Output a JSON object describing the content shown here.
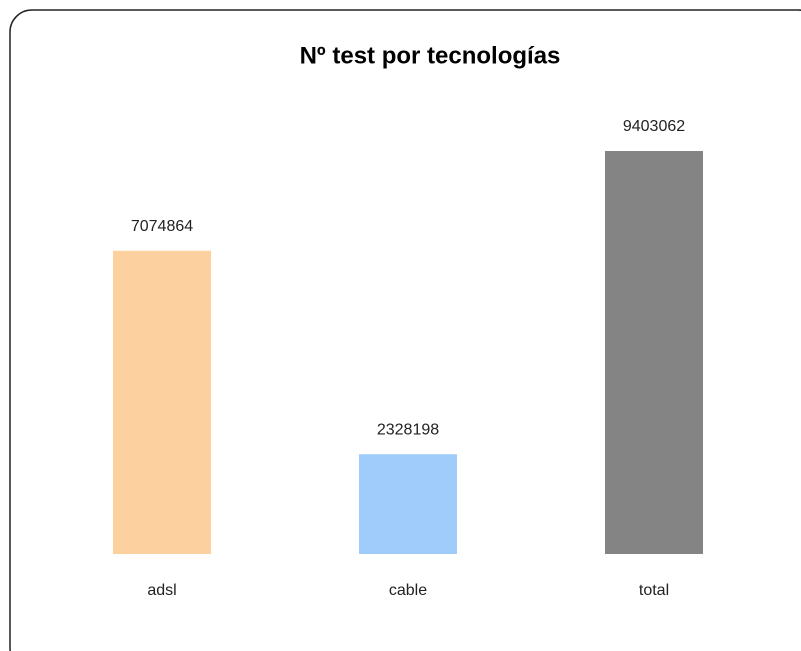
{
  "chart_data": {
    "type": "bar",
    "title": "Nº test por tecnologías",
    "categories": [
      "adsl",
      "cable",
      "total"
    ],
    "values": [
      7074864,
      2328198,
      9403062
    ],
    "colors": [
      "#fdd09f",
      "#a0ccfc",
      "#848484"
    ]
  }
}
